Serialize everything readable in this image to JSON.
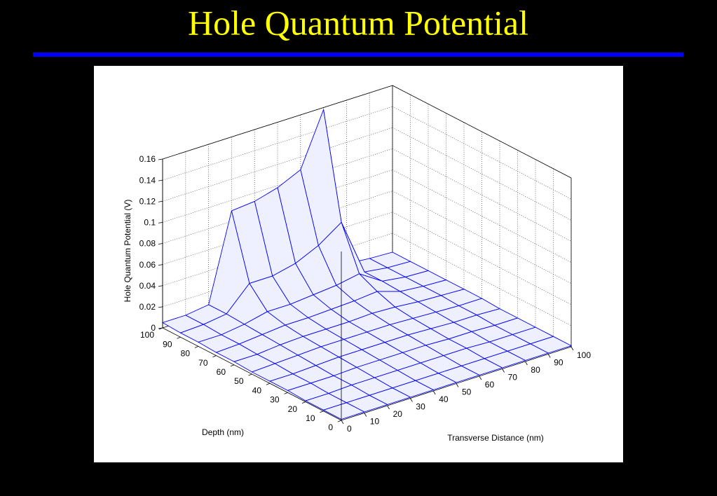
{
  "chart_data": {
    "type": "surface3d",
    "title": "Hole Quantum Potential",
    "zlabel": "Hole Quantum Potential (V)",
    "xlabel": "Depth (nm)",
    "ylabel": "Transverse Distance (nm)",
    "color": "#0000ff",
    "grid": true,
    "xlim": [
      0,
      100
    ],
    "ylim": [
      0,
      100
    ],
    "zlim": [
      0,
      0.16
    ],
    "xticks": [
      0,
      10,
      20,
      30,
      40,
      50,
      60,
      70,
      80,
      90,
      100
    ],
    "yticks": [
      0,
      10,
      20,
      30,
      40,
      50,
      60,
      70,
      80,
      90,
      100
    ],
    "zticks": [
      0,
      0.02,
      0.04,
      0.06,
      0.08,
      0.1,
      0.12,
      0.14,
      0.16
    ],
    "x": [
      0,
      10,
      20,
      30,
      40,
      50,
      60,
      70,
      80,
      90,
      100
    ],
    "y": [
      0,
      10,
      20,
      30,
      40,
      50,
      60,
      70,
      80,
      90,
      100
    ],
    "z": [
      [
        0.001,
        0.001,
        0.001,
        0.001,
        0.001,
        0.001,
        0.001,
        0.001,
        0.001,
        0.001,
        0.001
      ],
      [
        0.001,
        0.001,
        0.001,
        0.001,
        0.001,
        0.001,
        0.001,
        0.001,
        0.001,
        0.001,
        0.001
      ],
      [
        0.001,
        0.001,
        0.002,
        0.002,
        0.002,
        0.002,
        0.002,
        0.002,
        0.001,
        0.001,
        0.001
      ],
      [
        0.002,
        0.002,
        0.002,
        0.003,
        0.003,
        0.003,
        0.003,
        0.002,
        0.002,
        0.001,
        0.001
      ],
      [
        0.002,
        0.002,
        0.003,
        0.004,
        0.004,
        0.004,
        0.004,
        0.003,
        0.002,
        0.002,
        0.001
      ],
      [
        0.002,
        0.003,
        0.004,
        0.005,
        0.005,
        0.005,
        0.005,
        0.004,
        0.003,
        0.002,
        0.002
      ],
      [
        0.003,
        0.003,
        0.005,
        0.006,
        0.006,
        0.006,
        0.007,
        0.006,
        0.004,
        0.003,
        0.002
      ],
      [
        0.003,
        0.004,
        0.006,
        0.008,
        0.008,
        0.009,
        0.01,
        0.012,
        0.005,
        0.003,
        0.002
      ],
      [
        0.004,
        0.004,
        0.007,
        0.012,
        0.012,
        0.014,
        0.016,
        0.02,
        0.006,
        0.003,
        0.002
      ],
      [
        0.004,
        0.005,
        0.008,
        0.03,
        0.03,
        0.035,
        0.045,
        0.06,
        0.006,
        0.003,
        0.002
      ],
      [
        0.005,
        0.005,
        0.008,
        0.09,
        0.092,
        0.098,
        0.108,
        0.158,
        0.005,
        0.003,
        0.002
      ]
    ]
  }
}
